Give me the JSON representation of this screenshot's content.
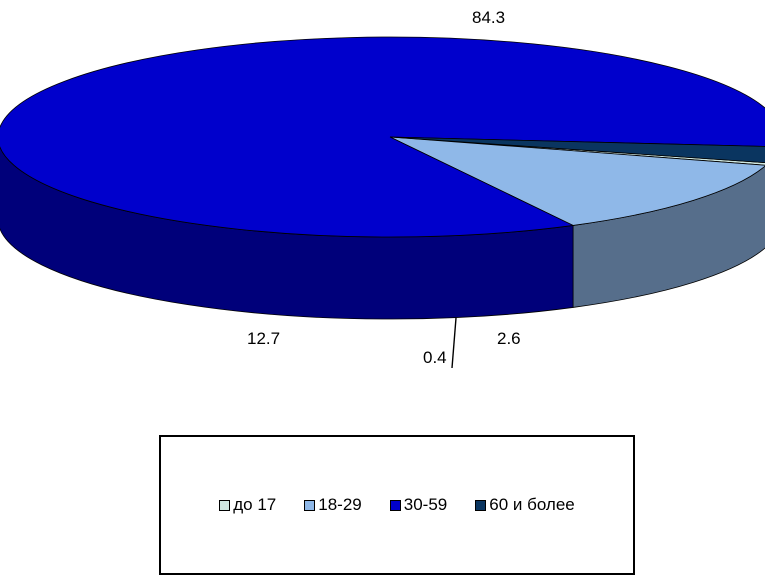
{
  "chart_data": {
    "type": "pie",
    "categories": [
      "до 17",
      "18-29",
      "30-59",
      "60  и более"
    ],
    "values": [
      0.4,
      12.7,
      84.3,
      2.6
    ],
    "data_labels": [
      "0.4",
      "12.7",
      "84.3",
      "2.6"
    ],
    "colors": {
      "до 17": "#cfe8e2",
      "18-29": "#8fb8e8",
      "30-59": "#0000cc",
      "60  и более": "#0a3560"
    },
    "legend_position": "bottom",
    "style": "3d"
  }
}
